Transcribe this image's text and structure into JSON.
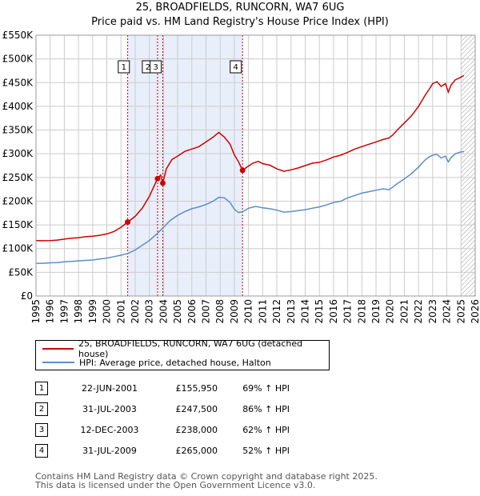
{
  "header": {
    "title": "25, BROADFIELDS, RUNCORN, WA7 6UG",
    "subtitle": "Price paid vs. HM Land Registry's House Price Index (HPI)"
  },
  "chart_data": {
    "type": "line",
    "x_range": [
      1995,
      2026
    ],
    "y_range": [
      0,
      550000
    ],
    "y_ticks": [
      {
        "value": 0,
        "label": "£0"
      },
      {
        "value": 50000,
        "label": "£50K"
      },
      {
        "value": 100000,
        "label": "£100K"
      },
      {
        "value": 150000,
        "label": "£150K"
      },
      {
        "value": 200000,
        "label": "£200K"
      },
      {
        "value": 250000,
        "label": "£250K"
      },
      {
        "value": 300000,
        "label": "£300K"
      },
      {
        "value": 350000,
        "label": "£350K"
      },
      {
        "value": 400000,
        "label": "£400K"
      },
      {
        "value": 450000,
        "label": "£450K"
      },
      {
        "value": 500000,
        "label": "£500K"
      },
      {
        "value": 550000,
        "label": "£550K"
      }
    ],
    "x_ticks": [
      "1995",
      "1996",
      "1997",
      "1998",
      "1999",
      "2000",
      "2001",
      "2002",
      "2003",
      "2004",
      "2005",
      "2006",
      "2007",
      "2008",
      "2009",
      "2010",
      "2011",
      "2012",
      "2013",
      "2014",
      "2015",
      "2016",
      "2017",
      "2018",
      "2019",
      "2020",
      "2021",
      "2022",
      "2023",
      "2024",
      "2025",
      "2026"
    ],
    "grid": true,
    "shaded_range": [
      2001.47,
      2009.58
    ],
    "future_hatch_from": 2025.0,
    "series": [
      {
        "name": "25, BROADFIELDS, RUNCORN, WA7 6UG (detached house)",
        "color": "#cc0000",
        "points": [
          [
            1995.0,
            117000
          ],
          [
            1995.5,
            116500
          ],
          [
            1996.0,
            117000
          ],
          [
            1996.5,
            118000
          ],
          [
            1997.0,
            120000
          ],
          [
            1997.5,
            122000
          ],
          [
            1998.0,
            123000
          ],
          [
            1998.5,
            125000
          ],
          [
            1999.0,
            126000
          ],
          [
            1999.5,
            128000
          ],
          [
            2000.0,
            131000
          ],
          [
            2000.5,
            136000
          ],
          [
            2001.0,
            145000
          ],
          [
            2001.47,
            155950
          ],
          [
            2002.0,
            168000
          ],
          [
            2002.5,
            185000
          ],
          [
            2003.0,
            210000
          ],
          [
            2003.58,
            247500
          ],
          [
            2003.8,
            255000
          ],
          [
            2003.95,
            238000
          ],
          [
            2004.2,
            268000
          ],
          [
            2004.6,
            288000
          ],
          [
            2005.0,
            295000
          ],
          [
            2005.5,
            305000
          ],
          [
            2006.0,
            310000
          ],
          [
            2006.5,
            315000
          ],
          [
            2007.0,
            325000
          ],
          [
            2007.5,
            335000
          ],
          [
            2007.9,
            345000
          ],
          [
            2008.3,
            335000
          ],
          [
            2008.7,
            320000
          ],
          [
            2009.0,
            298000
          ],
          [
            2009.3,
            283000
          ],
          [
            2009.58,
            265000
          ],
          [
            2009.9,
            272000
          ],
          [
            2010.3,
            280000
          ],
          [
            2010.7,
            284000
          ],
          [
            2011.0,
            279000
          ],
          [
            2011.5,
            276000
          ],
          [
            2012.0,
            268000
          ],
          [
            2012.5,
            263000
          ],
          [
            2013.0,
            266000
          ],
          [
            2013.5,
            270000
          ],
          [
            2014.0,
            275000
          ],
          [
            2014.5,
            280000
          ],
          [
            2015.0,
            282000
          ],
          [
            2015.5,
            287000
          ],
          [
            2016.0,
            293000
          ],
          [
            2016.5,
            297000
          ],
          [
            2017.0,
            303000
          ],
          [
            2017.5,
            310000
          ],
          [
            2018.0,
            315000
          ],
          [
            2018.5,
            320000
          ],
          [
            2019.0,
            325000
          ],
          [
            2019.5,
            330000
          ],
          [
            2019.9,
            333000
          ],
          [
            2020.2,
            340000
          ],
          [
            2020.5,
            350000
          ],
          [
            2021.0,
            365000
          ],
          [
            2021.5,
            380000
          ],
          [
            2022.0,
            400000
          ],
          [
            2022.5,
            425000
          ],
          [
            2022.8,
            438000
          ],
          [
            2023.0,
            448000
          ],
          [
            2023.3,
            452000
          ],
          [
            2023.6,
            442000
          ],
          [
            2023.9,
            448000
          ],
          [
            2024.1,
            430000
          ],
          [
            2024.3,
            445000
          ],
          [
            2024.6,
            456000
          ],
          [
            2024.9,
            460000
          ],
          [
            2025.2,
            465000
          ]
        ]
      },
      {
        "name": "HPI: Average price, detached house, Halton",
        "color": "#5b8dc9",
        "points": [
          [
            1995.0,
            69000
          ],
          [
            1995.5,
            69000
          ],
          [
            1996.0,
            70000
          ],
          [
            1996.5,
            70500
          ],
          [
            1997.0,
            72000
          ],
          [
            1997.5,
            73000
          ],
          [
            1998.0,
            74000
          ],
          [
            1998.5,
            75000
          ],
          [
            1999.0,
            76000
          ],
          [
            1999.5,
            78000
          ],
          [
            2000.0,
            80000
          ],
          [
            2000.5,
            83000
          ],
          [
            2001.0,
            86000
          ],
          [
            2001.5,
            90000
          ],
          [
            2002.0,
            97000
          ],
          [
            2002.5,
            107000
          ],
          [
            2003.0,
            117000
          ],
          [
            2003.5,
            130000
          ],
          [
            2004.0,
            145000
          ],
          [
            2004.5,
            160000
          ],
          [
            2005.0,
            170000
          ],
          [
            2005.5,
            178000
          ],
          [
            2006.0,
            184000
          ],
          [
            2006.5,
            188000
          ],
          [
            2007.0,
            193000
          ],
          [
            2007.5,
            200000
          ],
          [
            2007.9,
            208000
          ],
          [
            2008.3,
            207000
          ],
          [
            2008.7,
            197000
          ],
          [
            2009.0,
            183000
          ],
          [
            2009.3,
            176000
          ],
          [
            2009.6,
            178000
          ],
          [
            2010.0,
            185000
          ],
          [
            2010.5,
            189000
          ],
          [
            2011.0,
            186000
          ],
          [
            2011.5,
            184000
          ],
          [
            2012.0,
            181000
          ],
          [
            2012.5,
            177000
          ],
          [
            2013.0,
            178000
          ],
          [
            2013.5,
            180000
          ],
          [
            2014.0,
            182000
          ],
          [
            2014.5,
            185000
          ],
          [
            2015.0,
            188000
          ],
          [
            2015.5,
            192000
          ],
          [
            2016.0,
            197000
          ],
          [
            2016.5,
            200000
          ],
          [
            2017.0,
            207000
          ],
          [
            2017.5,
            212000
          ],
          [
            2018.0,
            217000
          ],
          [
            2018.5,
            220000
          ],
          [
            2019.0,
            223000
          ],
          [
            2019.5,
            226000
          ],
          [
            2019.9,
            224000
          ],
          [
            2020.2,
            230000
          ],
          [
            2020.5,
            237000
          ],
          [
            2021.0,
            247000
          ],
          [
            2021.5,
            258000
          ],
          [
            2022.0,
            272000
          ],
          [
            2022.5,
            288000
          ],
          [
            2022.8,
            294000
          ],
          [
            2023.0,
            297000
          ],
          [
            2023.3,
            299000
          ],
          [
            2023.6,
            291000
          ],
          [
            2023.9,
            295000
          ],
          [
            2024.1,
            283000
          ],
          [
            2024.3,
            292000
          ],
          [
            2024.6,
            300000
          ],
          [
            2024.9,
            303000
          ],
          [
            2025.2,
            305000
          ]
        ]
      }
    ],
    "sale_markers": [
      {
        "label": "1",
        "x": 2001.47,
        "price": 155950
      },
      {
        "label": "2",
        "x": 2003.58,
        "price": 247500
      },
      {
        "label": "3",
        "x": 2003.95,
        "price": 238000
      },
      {
        "label": "4",
        "x": 2009.58,
        "price": 265000
      }
    ]
  },
  "legend": {
    "property_label": "25, BROADFIELDS, RUNCORN, WA7 6UG (detached house)",
    "hpi_label": "HPI: Average price, detached house, Halton"
  },
  "sales": [
    {
      "num": "1",
      "date": "22-JUN-2001",
      "price": "£155,950",
      "hpi": "69% ↑ HPI"
    },
    {
      "num": "2",
      "date": "31-JUL-2003",
      "price": "£247,500",
      "hpi": "86% ↑ HPI"
    },
    {
      "num": "3",
      "date": "12-DEC-2003",
      "price": "£238,000",
      "hpi": "62% ↑ HPI"
    },
    {
      "num": "4",
      "date": "31-JUL-2009",
      "price": "£265,000",
      "hpi": "52% ↑ HPI"
    }
  ],
  "footer": {
    "line1": "Contains HM Land Registry data © Crown copyright and database right 2025.",
    "line2": "This data is licensed under the Open Government Licence v3.0."
  },
  "colors": {
    "property_line": "#cc0000",
    "hpi_line": "#5b8dc9",
    "shade": "#e8eefa",
    "grid": "#cccccc"
  }
}
